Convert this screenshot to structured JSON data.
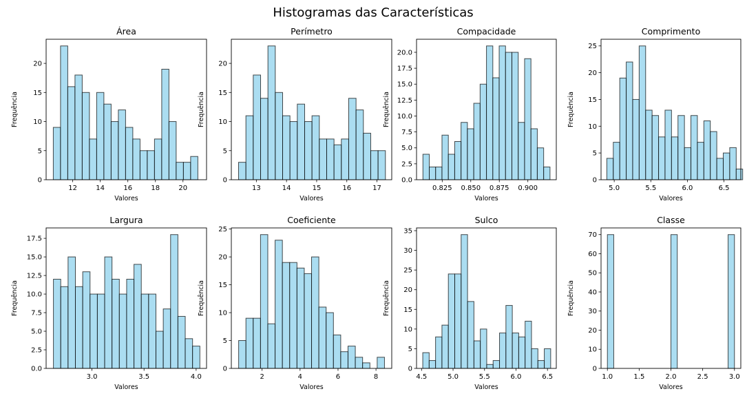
{
  "figure": {
    "title": "Histogramas das Características"
  },
  "colors": {
    "bar_fill": "#87ceeb",
    "bar_edge": "#000000",
    "background": "#ffffff"
  },
  "chart_data": [
    {
      "type": "bar",
      "title": "Área",
      "xlabel": "Valores",
      "ylabel": "Frequência",
      "bins": {
        "start": 10.59,
        "width": 0.5245
      },
      "values": [
        9,
        23,
        16,
        18,
        15,
        7,
        15,
        13,
        10,
        12,
        9,
        7,
        5,
        5,
        7,
        19,
        10,
        3,
        3,
        4
      ],
      "xlim": [
        10.07,
        21.71
      ],
      "ylim": [
        0,
        24.15
      ],
      "xticks": [
        12,
        14,
        16,
        18,
        20
      ],
      "yticks": [
        0,
        5,
        10,
        15,
        20
      ]
    },
    {
      "type": "bar",
      "title": "Perímetro",
      "xlabel": "Valores",
      "ylabel": "Frequência",
      "bins": {
        "start": 12.41,
        "width": 0.2435
      },
      "values": [
        3,
        11,
        18,
        14,
        23,
        15,
        11,
        10,
        13,
        10,
        11,
        7,
        7,
        6,
        7,
        14,
        12,
        8,
        5,
        5
      ],
      "xlim": [
        12.17,
        17.49
      ],
      "ylim": [
        0,
        24.15
      ],
      "xticks": [
        13,
        14,
        15,
        16,
        17
      ],
      "yticks": [
        0,
        5,
        10,
        15,
        20
      ]
    },
    {
      "type": "bar",
      "title": "Compacidade",
      "xlabel": "Valores",
      "ylabel": "Frequência",
      "bins": {
        "start": 0.8081,
        "width": 0.005565
      },
      "values": [
        4,
        2,
        2,
        7,
        4,
        6,
        9,
        8,
        12,
        15,
        21,
        16,
        21,
        20,
        20,
        9,
        19,
        8,
        5,
        2
      ],
      "xlim": [
        0.8025,
        0.9249
      ],
      "ylim": [
        0,
        22.05
      ],
      "xticks": [
        0.825,
        0.85,
        0.875,
        0.9
      ],
      "xtick_labels": [
        "0.825",
        "0.850",
        "0.875",
        "0.900"
      ],
      "yticks": [
        0,
        2.5,
        5,
        7.5,
        10,
        12.5,
        15,
        17.5,
        20
      ],
      "ytick_labels": [
        "0.0",
        "2.5",
        "5.0",
        "7.5",
        "10.0",
        "12.5",
        "15.0",
        "17.5",
        "20.0"
      ]
    },
    {
      "type": "bar",
      "title": "Comprimento",
      "xlabel": "Valores",
      "ylabel": "Frequência",
      "bins": {
        "start": 4.899,
        "width": 0.0884
      },
      "values": [
        4,
        7,
        19,
        22,
        15,
        25,
        13,
        12,
        8,
        13,
        8,
        12,
        6,
        12,
        7,
        11,
        9,
        4,
        5,
        6,
        2
      ],
      "xlim": [
        4.82,
        6.73
      ],
      "ylim": [
        0,
        26.25
      ],
      "xticks": [
        5.0,
        5.5,
        6.0,
        6.5
      ],
      "xtick_labels": [
        "5.0",
        "5.5",
        "6.0",
        "6.5"
      ],
      "yticks": [
        0,
        5,
        10,
        15,
        20,
        25
      ]
    },
    {
      "type": "bar",
      "title": "Largura",
      "xlabel": "Valores",
      "ylabel": "Frequência",
      "bins": {
        "start": 2.63,
        "width": 0.0703
      },
      "values": [
        12,
        11,
        15,
        11,
        13,
        10,
        10,
        15,
        12,
        10,
        12,
        14,
        10,
        10,
        5,
        8,
        18,
        7,
        4,
        3
      ],
      "xlim": [
        2.56,
        4.1
      ],
      "ylim": [
        0,
        18.9
      ],
      "xticks": [
        3.0,
        3.5,
        4.0
      ],
      "xtick_labels": [
        "3.0",
        "3.5",
        "4.0"
      ],
      "yticks": [
        0,
        2.5,
        5,
        7.5,
        10,
        12.5,
        15,
        17.5
      ],
      "ytick_labels": [
        "0.0",
        "2.5",
        "5.0",
        "7.5",
        "10.0",
        "12.5",
        "15.0",
        "17.5"
      ]
    },
    {
      "type": "bar",
      "title": "Coeficiente",
      "xlabel": "Valores",
      "ylabel": "Frequência",
      "bins": {
        "start": 0.765,
        "width": 0.3841
      },
      "values": [
        5,
        9,
        9,
        24,
        8,
        23,
        19,
        19,
        18,
        17,
        20,
        11,
        10,
        6,
        3,
        4,
        2,
        1,
        0,
        2
      ],
      "xlim": [
        0.38,
        8.83
      ],
      "ylim": [
        0,
        25.2
      ],
      "xticks": [
        2,
        4,
        6,
        8
      ],
      "yticks": [
        0,
        5,
        10,
        15,
        20,
        25
      ]
    },
    {
      "type": "bar",
      "title": "Sulco",
      "xlabel": "Valores",
      "ylabel": "Frequência",
      "bins": {
        "start": 4.519,
        "width": 0.1016
      },
      "values": [
        4,
        2,
        8,
        11,
        24,
        24,
        34,
        17,
        7,
        10,
        1,
        2,
        9,
        16,
        9,
        8,
        12,
        5,
        2,
        5
      ],
      "xlim": [
        4.42,
        6.64
      ],
      "ylim": [
        0,
        35.7
      ],
      "xticks": [
        4.5,
        5.0,
        5.5,
        6.0,
        6.5
      ],
      "xtick_labels": [
        "4.5",
        "5.0",
        "5.5",
        "6.0",
        "6.5"
      ],
      "yticks": [
        0,
        5,
        10,
        15,
        20,
        25,
        30,
        35
      ]
    },
    {
      "type": "bar",
      "title": "Classe",
      "xlabel": "Valores",
      "ylabel": "Frequência",
      "bins": {
        "start": 1.0,
        "width": 0.1
      },
      "values": [
        70,
        0,
        0,
        0,
        0,
        0,
        0,
        0,
        0,
        0,
        70,
        0,
        0,
        0,
        0,
        0,
        0,
        0,
        0,
        70
      ],
      "xlim": [
        0.9,
        3.1
      ],
      "ylim": [
        0,
        73.5
      ],
      "xticks": [
        1.0,
        1.5,
        2.0,
        2.5,
        3.0
      ],
      "xtick_labels": [
        "1.0",
        "1.5",
        "2.0",
        "2.5",
        "3.0"
      ],
      "yticks": [
        0,
        10,
        20,
        30,
        40,
        50,
        60,
        70
      ]
    }
  ]
}
